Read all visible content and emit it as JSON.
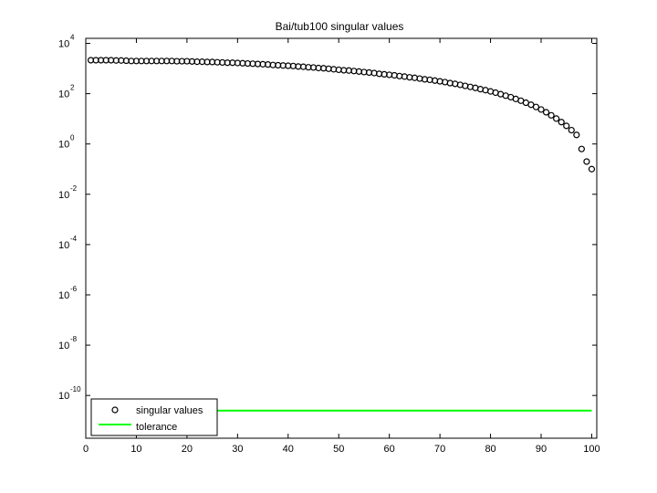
{
  "chart_data": {
    "type": "scatter",
    "title": "Bai/tub100 singular values",
    "xlabel": "",
    "ylabel": "",
    "xlim": [
      0,
      101
    ],
    "ylim_log10": [
      -11.7,
      4.2
    ],
    "y_scale": "log",
    "grid": false,
    "legend_position": "bottom-left",
    "x_ticks": [
      0,
      10,
      20,
      30,
      40,
      50,
      60,
      70,
      80,
      90,
      100
    ],
    "y_tick_exponents": [
      -10,
      -8,
      -6,
      -4,
      -2,
      0,
      2,
      4
    ],
    "y_tick_base": "10",
    "series": [
      {
        "name": "singular values",
        "marker": "circle",
        "color": "#000000",
        "x": [
          1,
          2,
          3,
          4,
          5,
          6,
          7,
          8,
          9,
          10,
          11,
          12,
          13,
          14,
          15,
          16,
          17,
          18,
          19,
          20,
          21,
          22,
          23,
          24,
          25,
          26,
          27,
          28,
          29,
          30,
          31,
          32,
          33,
          34,
          35,
          36,
          37,
          38,
          39,
          40,
          41,
          42,
          43,
          44,
          45,
          46,
          47,
          48,
          49,
          50,
          51,
          52,
          53,
          54,
          55,
          56,
          57,
          58,
          59,
          60,
          61,
          62,
          63,
          64,
          65,
          66,
          67,
          68,
          69,
          70,
          71,
          72,
          73,
          74,
          75,
          76,
          77,
          78,
          79,
          80,
          81,
          82,
          83,
          84,
          85,
          86,
          87,
          88,
          89,
          90,
          91,
          92,
          93,
          94,
          95,
          96,
          97,
          98,
          99,
          100
        ],
        "y_log10": [
          3.33,
          3.33,
          3.33,
          3.33,
          3.33,
          3.32,
          3.32,
          3.31,
          3.3,
          3.3,
          3.3,
          3.3,
          3.3,
          3.3,
          3.3,
          3.3,
          3.3,
          3.29,
          3.29,
          3.29,
          3.28,
          3.27,
          3.27,
          3.26,
          3.26,
          3.25,
          3.24,
          3.23,
          3.23,
          3.22,
          3.21,
          3.2,
          3.19,
          3.18,
          3.17,
          3.16,
          3.14,
          3.13,
          3.12,
          3.11,
          3.1,
          3.08,
          3.07,
          3.05,
          3.04,
          3.02,
          3.01,
          2.99,
          2.97,
          2.95,
          2.93,
          2.92,
          2.9,
          2.88,
          2.86,
          2.84,
          2.82,
          2.79,
          2.77,
          2.75,
          2.73,
          2.7,
          2.68,
          2.65,
          2.63,
          2.6,
          2.57,
          2.55,
          2.52,
          2.49,
          2.46,
          2.42,
          2.39,
          2.35,
          2.31,
          2.27,
          2.23,
          2.18,
          2.14,
          2.09,
          2.04,
          1.98,
          1.92,
          1.86,
          1.79,
          1.72,
          1.64,
          1.56,
          1.47,
          1.37,
          1.26,
          1.14,
          1.01,
          0.87,
          0.72,
          0.55,
          0.36,
          -0.2,
          -0.7,
          -1.0
        ]
      },
      {
        "name": "tolerance",
        "marker": "line",
        "color": "#00ff00",
        "x": [
          1,
          100
        ],
        "y_log10": [
          -10.6,
          -10.6
        ]
      }
    ]
  }
}
